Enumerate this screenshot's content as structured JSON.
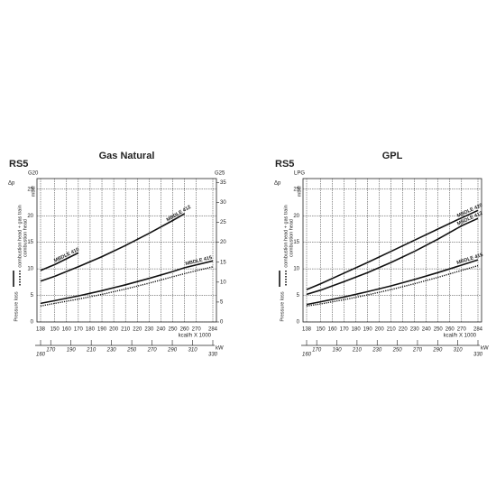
{
  "chart_data": [
    {
      "type": "line",
      "caption": "RS5",
      "title": "Gas Natural",
      "ylabel": "G20",
      "y2label": "G25",
      "xlabel": "kcal/h X 1000",
      "x2label": "kW",
      "legend": {
        "delta": "Δp",
        "unit": "mbar",
        "pressure": "Pressure loss",
        "solid": "combustion head + gas train",
        "dotted": "combustion head"
      },
      "x": [
        138,
        150,
        170,
        190,
        210,
        230,
        250,
        260,
        284
      ],
      "series": [
        {
          "name": "MBDLE 410",
          "color": "#111111",
          "style": "solid",
          "values": [
            9.7,
            10.8,
            13,
            null,
            null,
            null,
            null,
            null,
            null
          ]
        },
        {
          "name": "MBDLE 412",
          "color": "#111111",
          "style": "solid",
          "values": [
            7.7,
            8.6,
            10.4,
            12.3,
            14.4,
            16.7,
            19.1,
            20.4,
            null
          ]
        },
        {
          "name": "MBDLE 415",
          "color": "#111111",
          "style": "solid",
          "values": [
            3.5,
            4.0,
            4.9,
            5.9,
            7.0,
            8.2,
            9.5,
            10.2,
            11.5
          ]
        },
        {
          "color": "#111111",
          "style": "dotted",
          "values": [
            3.0,
            3.5,
            4.3,
            5.2,
            6.2,
            7.3,
            8.5,
            9.1,
            10.4
          ]
        }
      ],
      "xlim": [
        138,
        284
      ],
      "xticks": [
        138,
        150,
        160,
        170,
        180,
        190,
        200,
        210,
        220,
        230,
        240,
        250,
        260,
        270,
        284
      ],
      "x2lim": [
        160,
        330
      ],
      "x2ticks": [
        160,
        170,
        190,
        210,
        230,
        250,
        270,
        290,
        310,
        330
      ],
      "ylim": [
        0,
        27
      ],
      "yticks": [
        0,
        5,
        10,
        15,
        20,
        25
      ],
      "y2lim": [
        0,
        36
      ],
      "y2ticks": [
        0,
        5,
        10,
        15,
        20,
        25,
        30,
        35
      ],
      "grid": true
    },
    {
      "type": "line",
      "caption": "RS5",
      "title": "GPL",
      "ylabel": "LPG",
      "xlabel": "kcal/h X 1000",
      "x2label": "kW",
      "legend": {
        "delta": "Δp",
        "unit": "mbar",
        "pressure": "Pressure loss",
        "solid": "combustion head + gas train",
        "dotted": "combustion head"
      },
      "x": [
        138,
        150,
        170,
        190,
        210,
        230,
        250,
        270,
        284
      ],
      "series": [
        {
          "name": "MBDLE 420",
          "color": "#111111",
          "style": "solid",
          "values": [
            6.1,
            7.2,
            9.2,
            11.2,
            13.3,
            15.4,
            17.5,
            19.6,
            21.0
          ]
        },
        {
          "name": "MBDLE 412",
          "color": "#111111",
          "style": "solid",
          "values": [
            5.2,
            6.0,
            7.6,
            9.3,
            11.2,
            13.3,
            15.6,
            18.1,
            19.5
          ]
        },
        {
          "name": "MBDLE 415",
          "color": "#111111",
          "style": "solid",
          "values": [
            3.3,
            3.8,
            4.7,
            5.7,
            6.8,
            8.0,
            9.3,
            10.7,
            11.7
          ]
        },
        {
          "color": "#111111",
          "style": "dotted",
          "values": [
            3.0,
            3.4,
            4.2,
            5.1,
            6.1,
            7.2,
            8.4,
            9.7,
            10.6
          ]
        }
      ],
      "xlim": [
        138,
        284
      ],
      "xticks": [
        138,
        150,
        160,
        170,
        180,
        190,
        200,
        210,
        220,
        230,
        240,
        250,
        260,
        270,
        284
      ],
      "x2lim": [
        160,
        330
      ],
      "x2ticks": [
        160,
        170,
        190,
        210,
        230,
        250,
        270,
        290,
        310,
        330
      ],
      "ylim": [
        0,
        27
      ],
      "yticks": [
        0,
        5,
        10,
        15,
        20,
        25
      ],
      "grid": true
    }
  ]
}
